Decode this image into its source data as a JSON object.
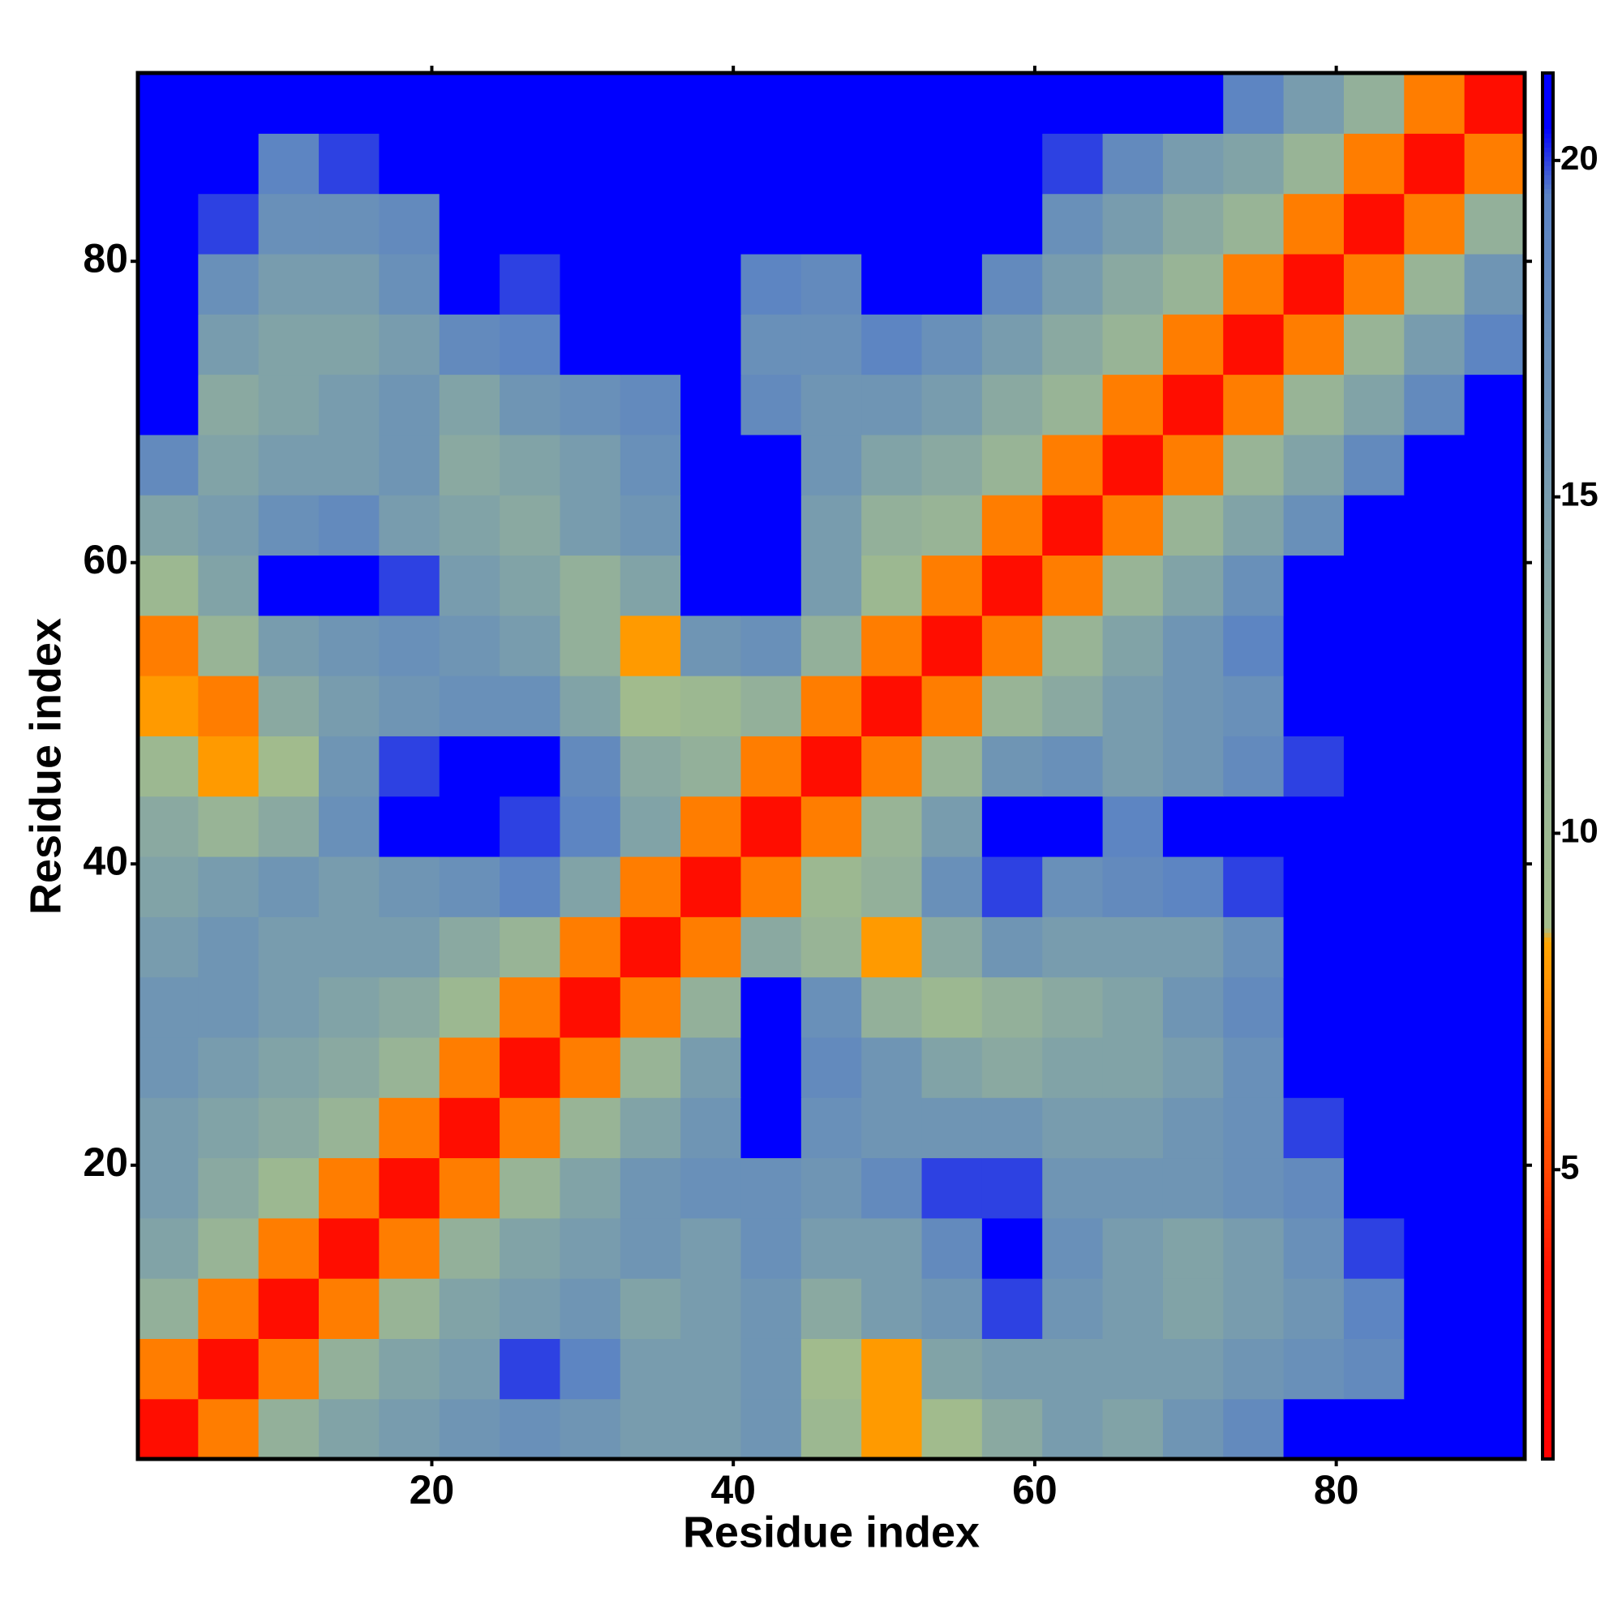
{
  "chart_data": {
    "type": "heatmap",
    "xlabel": "Residue index",
    "ylabel": "Residue index",
    "x": [
      1,
      5,
      9,
      13,
      17,
      21,
      25,
      29,
      33,
      37,
      41,
      45,
      49,
      53,
      57,
      61,
      65,
      69,
      73,
      77,
      81,
      85,
      89
    ],
    "y": [
      1,
      5,
      9,
      13,
      17,
      21,
      25,
      29,
      33,
      37,
      41,
      45,
      49,
      53,
      57,
      61,
      65,
      69,
      73,
      77,
      81,
      85,
      89
    ],
    "xlim": [
      0.5,
      92.5
    ],
    "ylim": [
      0.5,
      92.5
    ],
    "xticks": [
      20,
      40,
      60,
      80
    ],
    "yticks": [
      20,
      40,
      60,
      80
    ],
    "zlim": [
      0.7,
      21.3
    ],
    "zticks": [
      5,
      10,
      15,
      20
    ],
    "colorscale": [
      [
        0.7,
        "#ff0000"
      ],
      [
        3.5,
        "#ff1000"
      ],
      [
        5,
        "#ff4500"
      ],
      [
        8.4,
        "#ffa500"
      ],
      [
        8.6,
        "#a3bd8b"
      ],
      [
        12,
        "#93b09a"
      ],
      [
        16,
        "#6f95b4"
      ],
      [
        19.5,
        "#5a82c4"
      ],
      [
        20.5,
        "#0000ff"
      ]
    ],
    "z": [
      [
        3,
        7,
        12,
        14,
        15,
        16,
        17,
        16,
        15,
        15,
        16,
        10,
        8,
        9,
        13,
        15,
        14,
        16,
        18,
        21,
        21,
        21,
        21
      ],
      [
        7,
        3,
        7,
        12,
        14,
        15,
        20,
        19,
        15,
        15,
        16,
        9,
        8,
        14,
        15,
        15,
        15,
        15,
        16,
        17,
        18,
        21,
        21
      ],
      [
        12,
        7,
        3,
        7,
        11,
        14,
        15,
        16,
        14,
        15,
        16,
        13,
        15,
        16,
        20,
        16,
        15,
        14,
        15,
        16,
        19,
        21,
        21
      ],
      [
        14,
        11,
        7,
        3,
        7,
        12,
        14,
        15,
        16,
        15,
        17,
        15,
        15,
        18,
        21,
        17,
        15,
        14,
        15,
        17,
        20,
        21,
        21
      ],
      [
        15,
        13,
        10,
        7,
        3,
        7,
        11,
        14,
        16,
        17,
        17,
        16,
        18,
        20,
        20,
        16,
        16,
        16,
        17,
        18,
        21,
        21,
        21
      ],
      [
        15,
        14,
        13,
        11,
        7,
        3,
        7,
        11,
        14,
        16,
        21,
        17,
        16,
        16,
        16,
        15,
        15,
        16,
        17,
        20,
        21,
        21,
        21
      ],
      [
        16,
        15,
        14,
        13,
        11,
        7,
        3,
        7,
        11,
        15,
        21,
        18,
        16,
        14,
        13,
        14,
        14,
        15,
        17,
        21,
        21,
        21,
        21
      ],
      [
        16,
        16,
        15,
        14,
        13,
        10,
        7,
        3,
        7,
        12,
        21,
        17,
        12,
        10,
        12,
        13,
        14,
        16,
        18,
        21,
        21,
        21,
        21
      ],
      [
        15,
        16,
        15,
        15,
        15,
        13,
        11,
        7,
        3,
        7,
        13,
        11,
        8,
        13,
        16,
        15,
        15,
        15,
        17,
        21,
        21,
        21,
        21
      ],
      [
        14,
        15,
        16,
        15,
        16,
        17,
        19,
        14,
        7,
        3,
        7,
        10,
        12,
        17,
        20,
        17,
        18,
        19,
        20,
        21,
        21,
        21,
        21
      ],
      [
        13,
        11,
        13,
        17,
        21,
        21,
        20,
        19,
        14,
        7,
        3,
        7,
        11,
        15,
        21,
        21,
        19,
        21,
        21,
        21,
        21,
        21,
        21
      ],
      [
        10,
        8,
        9,
        16,
        20,
        21,
        21,
        18,
        13,
        12,
        7,
        3,
        7,
        11,
        16,
        17,
        15,
        16,
        18,
        20,
        21,
        21,
        21
      ],
      [
        8,
        7,
        13,
        15,
        16,
        17,
        17,
        14,
        9,
        10,
        12,
        7,
        3,
        7,
        11,
        13,
        15,
        16,
        17,
        21,
        21,
        21,
        21
      ],
      [
        7,
        11,
        15,
        16,
        17,
        16,
        15,
        12,
        8,
        16,
        17,
        12,
        7,
        3,
        7,
        11,
        14,
        16,
        19,
        21,
        21,
        21,
        21
      ],
      [
        10,
        14,
        21,
        21,
        20,
        15,
        14,
        12,
        14,
        21,
        21,
        15,
        10,
        7,
        3,
        7,
        11,
        14,
        17,
        21,
        21,
        21,
        21
      ],
      [
        14,
        15,
        17,
        18,
        15,
        14,
        13,
        15,
        16,
        21,
        21,
        15,
        12,
        11,
        7,
        3,
        7,
        11,
        14,
        17,
        21,
        21,
        21
      ],
      [
        18,
        14,
        15,
        15,
        16,
        13,
        14,
        15,
        17,
        21,
        21,
        16,
        14,
        13,
        11,
        7,
        3,
        7,
        11,
        14,
        18,
        21,
        21
      ],
      [
        21,
        13,
        14,
        15,
        16,
        14,
        16,
        17,
        18,
        21,
        18,
        16,
        16,
        15,
        13,
        11,
        7,
        3,
        7,
        11,
        14,
        18,
        21
      ],
      [
        21,
        15,
        14,
        14,
        15,
        18,
        19,
        21,
        21,
        21,
        17,
        17,
        19,
        17,
        15,
        13,
        11,
        7,
        3,
        7,
        11,
        15,
        19
      ],
      [
        21,
        17,
        15,
        15,
        17,
        21,
        20,
        21,
        21,
        21,
        19,
        18,
        21,
        21,
        18,
        15,
        13,
        11,
        7,
        3,
        7,
        11,
        16
      ],
      [
        21,
        20,
        17,
        17,
        18,
        21,
        21,
        21,
        21,
        21,
        21,
        21,
        21,
        21,
        21,
        17,
        15,
        13,
        11,
        7,
        3,
        7,
        12
      ],
      [
        21,
        21,
        19,
        20,
        21,
        21,
        21,
        21,
        21,
        21,
        21,
        21,
        21,
        21,
        21,
        20,
        18,
        15,
        14,
        11,
        7,
        3,
        7
      ],
      [
        21,
        21,
        21,
        21,
        21,
        21,
        21,
        21,
        21,
        21,
        21,
        21,
        21,
        21,
        21,
        21,
        21,
        21,
        19,
        15,
        12,
        7,
        3
      ]
    ]
  }
}
